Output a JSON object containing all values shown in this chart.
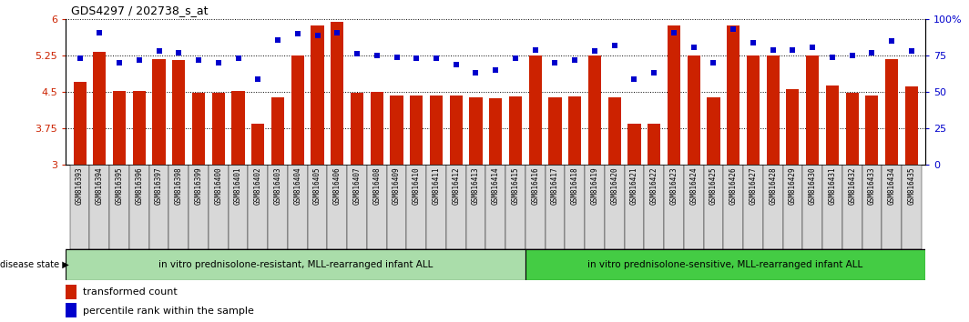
{
  "title": "GDS4297 / 202738_s_at",
  "samples": [
    "GSM816393",
    "GSM816394",
    "GSM816395",
    "GSM816396",
    "GSM816397",
    "GSM816398",
    "GSM816399",
    "GSM816400",
    "GSM816401",
    "GSM816402",
    "GSM816403",
    "GSM816404",
    "GSM816405",
    "GSM816406",
    "GSM816407",
    "GSM816408",
    "GSM816409",
    "GSM816410",
    "GSM816411",
    "GSM816412",
    "GSM816413",
    "GSM816414",
    "GSM816415",
    "GSM816416",
    "GSM816417",
    "GSM816418",
    "GSM816419",
    "GSM816420",
    "GSM816421",
    "GSM816422",
    "GSM816423",
    "GSM816424",
    "GSM816425",
    "GSM816426",
    "GSM816427",
    "GSM816428",
    "GSM816429",
    "GSM816430",
    "GSM816431",
    "GSM816432",
    "GSM816433",
    "GSM816434",
    "GSM816435"
  ],
  "bar_values": [
    4.7,
    5.33,
    4.52,
    4.52,
    5.17,
    5.15,
    4.47,
    4.48,
    4.51,
    3.83,
    4.38,
    5.25,
    5.87,
    5.94,
    4.47,
    4.5,
    4.42,
    4.42,
    4.42,
    4.42,
    4.38,
    4.37,
    4.4,
    5.25,
    4.38,
    4.4,
    5.25,
    4.38,
    3.83,
    3.83,
    5.87,
    5.25,
    4.38,
    5.87,
    5.25,
    5.25,
    4.55,
    5.25,
    4.63,
    4.47,
    4.42,
    5.17,
    4.62
  ],
  "percentile_values": [
    73,
    91,
    70,
    72,
    78,
    77,
    72,
    70,
    73,
    59,
    86,
    90,
    89,
    91,
    76,
    75,
    74,
    73,
    73,
    69,
    63,
    65,
    73,
    79,
    70,
    72,
    78,
    82,
    59,
    63,
    91,
    81,
    70,
    93,
    84,
    79,
    79,
    81,
    74,
    75,
    77,
    85,
    78
  ],
  "bar_color": "#cc2200",
  "dot_color": "#0000cc",
  "ylim_left": [
    3.0,
    6.0
  ],
  "ylim_right": [
    0,
    100
  ],
  "yticks_left": [
    3.0,
    3.75,
    4.5,
    5.25,
    6.0
  ],
  "ytick_labels_left": [
    "3",
    "3.75",
    "4.5",
    "5.25",
    "6"
  ],
  "yticks_right": [
    0,
    25,
    50,
    75,
    100
  ],
  "ytick_labels_right": [
    "0",
    "25",
    "50",
    "75",
    "100%"
  ],
  "group1_label": "in vitro prednisolone-resistant, MLL-rearranged infant ALL",
  "group2_label": "in vitro prednisolone-sensitive, MLL-rearranged infant ALL",
  "group1_color": "#aaddaa",
  "group2_color": "#44cc44",
  "group1_count": 23,
  "legend_bar_label": "transformed count",
  "legend_dot_label": "percentile rank within the sample",
  "disease_state_label": "disease state",
  "bg_color": "#ffffff",
  "tick_label_color_left": "#cc2200",
  "tick_label_color_right": "#0000cc"
}
